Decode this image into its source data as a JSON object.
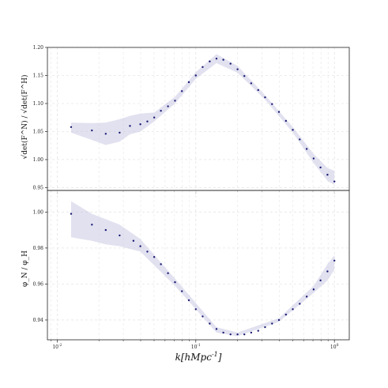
{
  "chart_data": {
    "type": "scatter",
    "xlabel": "k[hMpc^{-1}]",
    "x_scale": "log",
    "x_ticks": [
      {
        "value": 0.01,
        "label": "10^{-2}"
      },
      {
        "value": 0.1,
        "label": "10^{-1}"
      },
      {
        "value": 1,
        "label": "10^{0}"
      }
    ],
    "panels": [
      {
        "id": "top",
        "ylabel": "√det(F^N) / √det(F^H)",
        "ylim": [
          0.945,
          1.2
        ],
        "yticks": [
          "0.95",
          "1.00",
          "1.05",
          "1.10",
          "1.15",
          "1.20"
        ],
        "grid": true,
        "series": [
          {
            "color": "#1a1a70",
            "band_color": "#c9c9e3",
            "points": [
              [
                0.0126,
                1.058
              ],
              [
                0.0178,
                1.052
              ],
              [
                0.0224,
                1.046
              ],
              [
                0.0282,
                1.048
              ],
              [
                0.0335,
                1.06
              ],
              [
                0.0398,
                1.063
              ],
              [
                0.0447,
                1.068
              ],
              [
                0.0501,
                1.075
              ],
              [
                0.056,
                1.087
              ],
              [
                0.063,
                1.095
              ],
              [
                0.0708,
                1.105
              ],
              [
                0.0794,
                1.122
              ],
              [
                0.0891,
                1.138
              ],
              [
                0.1,
                1.15
              ],
              [
                0.112,
                1.165
              ],
              [
                0.126,
                1.175
              ],
              [
                0.141,
                1.18
              ],
              [
                0.158,
                1.178
              ],
              [
                0.178,
                1.171
              ],
              [
                0.2,
                1.161
              ],
              [
                0.224,
                1.149
              ],
              [
                0.251,
                1.136
              ],
              [
                0.282,
                1.124
              ],
              [
                0.316,
                1.111
              ],
              [
                0.355,
                1.099
              ],
              [
                0.398,
                1.085
              ],
              [
                0.447,
                1.069
              ],
              [
                0.501,
                1.053
              ],
              [
                0.562,
                1.036
              ],
              [
                0.631,
                1.019
              ],
              [
                0.708,
                1.002
              ],
              [
                0.794,
                0.986
              ],
              [
                0.891,
                0.973
              ],
              [
                1.0,
                0.961
              ]
            ],
            "band": [
              [
                0.0126,
                1.066,
                1.048
              ],
              [
                0.0178,
                1.065,
                1.035
              ],
              [
                0.0224,
                1.066,
                1.026
              ],
              [
                0.0282,
                1.072,
                1.032
              ],
              [
                0.0335,
                1.078,
                1.045
              ],
              [
                0.0398,
                1.082,
                1.05
              ],
              [
                0.0501,
                1.084,
                1.068
              ],
              [
                0.0708,
                1.112,
                1.1
              ],
              [
                0.1,
                1.156,
                1.144
              ],
              [
                0.141,
                1.188,
                1.172
              ],
              [
                0.2,
                1.167,
                1.155
              ],
              [
                0.316,
                1.115,
                1.107
              ],
              [
                0.501,
                1.058,
                1.048
              ],
              [
                0.708,
                1.01,
                0.994
              ],
              [
                0.891,
                0.985,
                0.962
              ],
              [
                1.0,
                0.98,
                0.955
              ]
            ]
          }
        ]
      },
      {
        "id": "bottom",
        "ylabel": "φ_N / φ_H",
        "ylim": [
          0.929,
          1.012
        ],
        "yticks": [
          "0.94",
          "0.96",
          "0.98",
          "1.00"
        ],
        "grid": true,
        "series": [
          {
            "color": "#1a1a70",
            "band_color": "#c9c9e3",
            "points": [
              [
                0.0126,
                0.999
              ],
              [
                0.0178,
                0.993
              ],
              [
                0.0224,
                0.99
              ],
              [
                0.0282,
                0.987
              ],
              [
                0.0355,
                0.984
              ],
              [
                0.0398,
                0.981
              ],
              [
                0.0447,
                0.978
              ],
              [
                0.0501,
                0.975
              ],
              [
                0.056,
                0.971
              ],
              [
                0.063,
                0.966
              ],
              [
                0.0708,
                0.961
              ],
              [
                0.0794,
                0.956
              ],
              [
                0.0891,
                0.951
              ],
              [
                0.1,
                0.946
              ],
              [
                0.112,
                0.942
              ],
              [
                0.126,
                0.938
              ],
              [
                0.141,
                0.935
              ],
              [
                0.158,
                0.933
              ],
              [
                0.178,
                0.932
              ],
              [
                0.2,
                0.932
              ],
              [
                0.224,
                0.932
              ],
              [
                0.251,
                0.933
              ],
              [
                0.282,
                0.934
              ],
              [
                0.316,
                0.936
              ],
              [
                0.355,
                0.938
              ],
              [
                0.398,
                0.94
              ],
              [
                0.447,
                0.943
              ],
              [
                0.501,
                0.946
              ],
              [
                0.562,
                0.949
              ],
              [
                0.631,
                0.953
              ],
              [
                0.708,
                0.957
              ],
              [
                0.794,
                0.962
              ],
              [
                0.891,
                0.967
              ],
              [
                1.0,
                0.973
              ]
            ],
            "band": [
              [
                0.0126,
                1.006,
                0.986
              ],
              [
                0.0178,
                0.999,
                0.984
              ],
              [
                0.0224,
                0.996,
                0.982
              ],
              [
                0.0282,
                0.993,
                0.981
              ],
              [
                0.0398,
                0.985,
                0.978
              ],
              [
                0.0708,
                0.963,
                0.959
              ],
              [
                0.141,
                0.936,
                0.933
              ],
              [
                0.2,
                0.933,
                0.931
              ],
              [
                0.398,
                0.941,
                0.939
              ],
              [
                0.708,
                0.959,
                0.955
              ],
              [
                0.891,
                0.971,
                0.962
              ],
              [
                1.0,
                0.976,
                0.968
              ]
            ]
          }
        ]
      }
    ]
  }
}
